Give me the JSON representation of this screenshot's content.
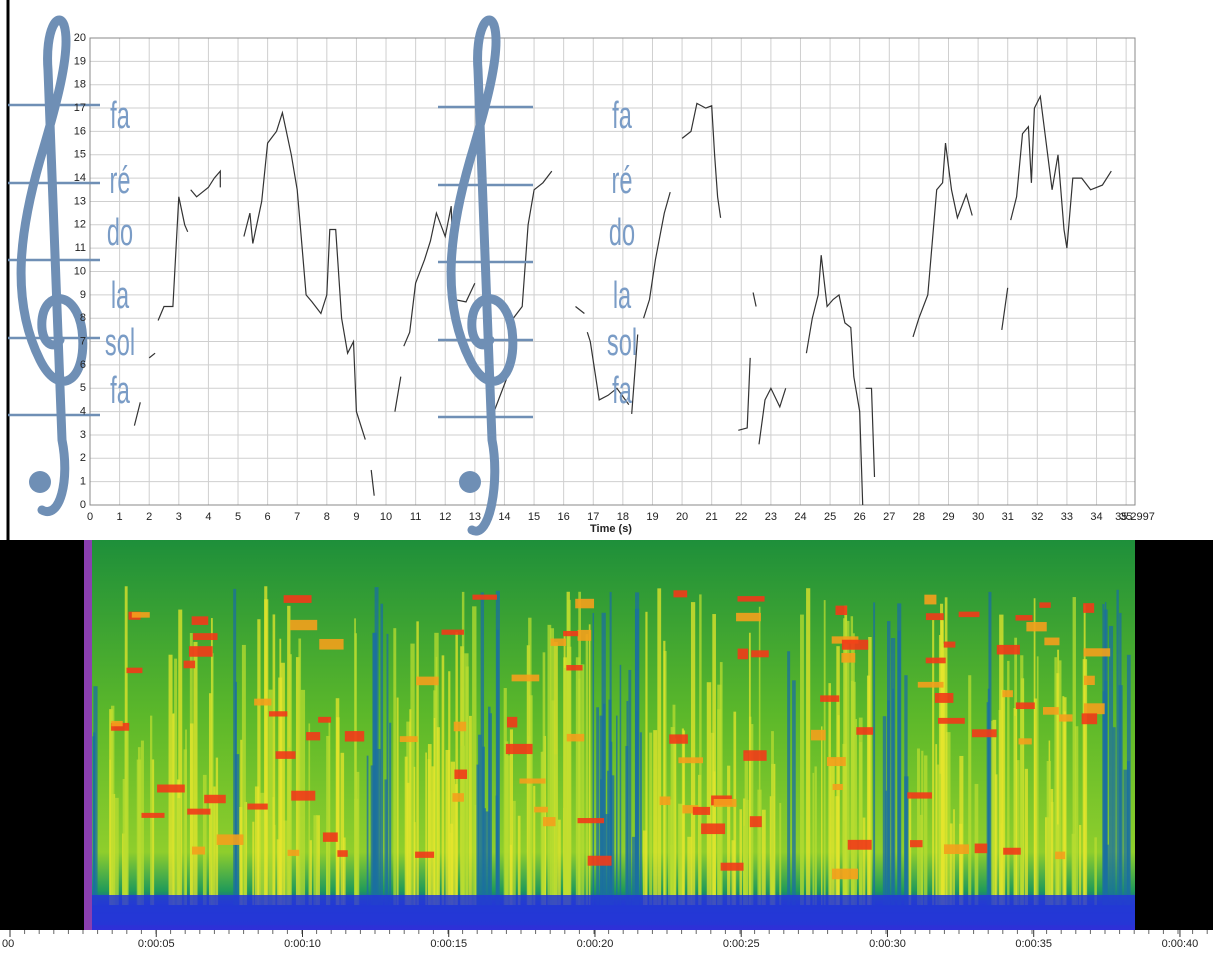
{
  "chart_data": [
    {
      "type": "line",
      "xlabel": "Time (s)",
      "xlim": [
        0,
        35.2997
      ],
      "xticks": [
        0,
        1,
        2,
        3,
        4,
        5,
        6,
        7,
        8,
        9,
        10,
        11,
        12,
        13,
        14,
        15,
        16,
        17,
        18,
        19,
        20,
        21,
        22,
        23,
        24,
        25,
        26,
        27,
        28,
        29,
        30,
        31,
        32,
        33,
        34,
        35,
        {
          "value": 35.2997,
          "label": "35.2997"
        }
      ],
      "ylim": [
        0,
        20
      ],
      "yticks": [
        0,
        1,
        2,
        3,
        4,
        5,
        6,
        7,
        8,
        9,
        10,
        11,
        12,
        13,
        14,
        15,
        16,
        17,
        18,
        19,
        20
      ],
      "grid": true,
      "annotations": [
        [
          "fa",
          "ré",
          "do",
          "la",
          "sol",
          "fa"
        ],
        [
          "fa",
          "ré",
          "do",
          "la",
          "sol",
          "fa"
        ]
      ],
      "x": [
        1.5,
        1.7,
        null,
        2,
        2.2,
        null,
        2.3,
        2.5,
        2.8,
        3,
        3.2,
        3.3,
        null,
        3.4,
        3.6,
        4,
        4.2,
        4.4,
        4.4,
        null,
        5.2,
        5.4,
        5.5,
        5.8,
        6,
        6.3,
        6.5,
        6.8,
        7,
        7.1,
        7.3,
        7.5,
        7.8,
        8,
        8.1,
        8.3,
        8.5,
        8.7,
        8.9,
        9,
        9.3,
        null,
        9.5,
        9.6,
        null,
        10.3,
        10.5,
        null,
        10.6,
        10.8,
        11,
        11.3,
        11.5,
        11.7,
        12,
        12.2,
        12.3,
        12.7,
        13,
        null,
        13.5,
        13.8,
        14.1,
        14.3,
        14.6,
        14.8,
        15,
        15.3,
        15.6,
        null,
        16.4,
        16.7,
        null,
        16.8,
        16.9,
        17.2,
        17.5,
        17.8,
        18.2,
        null,
        18.3,
        18.5,
        null,
        18.7,
        18.9,
        19.1,
        19.4,
        19.6,
        null,
        20,
        20.3,
        20.5,
        20.8,
        21,
        21.1,
        21.2,
        21.3,
        null,
        21.9,
        22.2,
        22.3,
        null,
        22.4,
        22.5,
        null,
        22.6,
        22.8,
        23,
        23.3,
        23.5,
        null,
        24.2,
        24.4,
        24.6,
        24.7,
        24.9,
        25.1,
        25.3,
        25.5,
        25.7,
        25.8,
        26,
        26.1,
        null,
        26.2,
        26.4,
        26.5,
        null,
        27.8,
        28,
        28.3,
        28.6,
        28.8,
        28.9,
        29.1,
        29.3,
        29.6,
        29.8,
        null,
        30.8,
        31,
        null,
        31.1,
        31.3,
        31.5,
        31.7,
        31.8,
        31.9,
        32.1,
        32.3,
        32.5,
        32.7,
        32.9,
        33,
        33.2,
        33.5,
        33.8,
        34.2,
        34.5
      ],
      "series": [
        {
          "name": "pitch",
          "color": "#333333",
          "values": [
            3.4,
            4.4,
            null,
            6.3,
            6.5,
            null,
            7.9,
            8.5,
            8.5,
            13.2,
            12,
            11.7,
            null,
            13.5,
            13.2,
            13.6,
            14,
            14.3,
            13.6,
            null,
            11.5,
            12.5,
            11.2,
            13,
            15.5,
            16,
            16.8,
            15,
            13.5,
            12,
            9,
            8.7,
            8.2,
            9,
            11.8,
            11.8,
            8,
            6.5,
            7,
            4,
            2.8,
            null,
            1.5,
            0.4,
            null,
            4,
            5.5,
            null,
            6.8,
            7.4,
            9.5,
            10.5,
            11.3,
            12.5,
            11.5,
            12.8,
            8.8,
            8.7,
            9.5,
            null,
            3.5,
            4.5,
            5.5,
            8,
            8.5,
            12,
            13.5,
            13.8,
            14.3,
            null,
            8.5,
            8.2,
            null,
            7.4,
            7,
            4.5,
            4.7,
            5,
            4.3,
            null,
            3.9,
            7.3,
            null,
            8,
            8.8,
            10.5,
            12.5,
            13.4,
            null,
            15.7,
            16,
            17.2,
            17,
            17.1,
            15,
            13.2,
            12.3,
            null,
            3.2,
            3.3,
            6.3,
            null,
            9.1,
            8.5,
            null,
            2.6,
            4.5,
            5,
            4.2,
            5,
            null,
            6.5,
            8,
            9,
            10.7,
            8.5,
            8.8,
            9,
            7.8,
            7.6,
            5.5,
            4,
            0,
            null,
            5,
            5,
            1.2,
            null,
            7.2,
            8,
            9,
            13.5,
            13.8,
            15.5,
            13.5,
            12.3,
            13.3,
            12.4,
            null,
            7.5,
            9.3,
            null,
            12.2,
            13.2,
            15.9,
            16.2,
            13.8,
            17,
            17.5,
            15.5,
            13.5,
            15,
            11.8,
            11,
            14,
            14,
            13.5,
            13.7,
            14.3
          ]
        }
      ]
    },
    {
      "type": "spectrogram",
      "xlim": [
        -0.342,
        41.13
      ],
      "xticks": [
        {
          "value": 0,
          "label": "00"
        },
        {
          "value": 5,
          "label": "0:00:05"
        },
        {
          "value": 10,
          "label": "0:00:10"
        },
        {
          "value": 15,
          "label": "0:00:15"
        },
        {
          "value": 20,
          "label": "0:00:20"
        },
        {
          "value": 25,
          "label": "0:00:25"
        },
        {
          "value": 30,
          "label": "0:00:30"
        },
        {
          "value": 35,
          "label": "0:00:35"
        },
        {
          "value": 40,
          "label": "0:00:40"
        }
      ]
    }
  ]
}
